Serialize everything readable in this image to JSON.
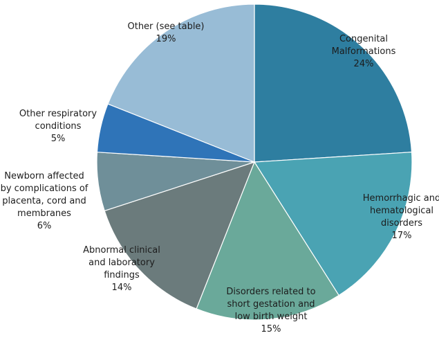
{
  "chart_data": {
    "type": "pie",
    "title": "",
    "slices": [
      {
        "label": "Congenital Malformations",
        "label_lines": [
          "Congenital",
          "Malformations"
        ],
        "value": 24,
        "value_label": "24%",
        "color": "#2e7ea0"
      },
      {
        "label": "Hemorrhagic and hematological disorders",
        "label_lines": [
          "Hemorrhagic and",
          "hematological",
          "disorders"
        ],
        "value": 17,
        "value_label": "17%",
        "color": "#4aa3b3"
      },
      {
        "label": "Disorders related to short gestation and low birth weight",
        "label_lines": [
          "Disorders related to",
          "short gestation and",
          "low birth weight"
        ],
        "value": 15,
        "value_label": "15%",
        "color": "#6aa99a"
      },
      {
        "label": "Abnormal clinical and laboratory findings",
        "label_lines": [
          "Abnormal clinical",
          "and laboratory",
          "findings"
        ],
        "value": 14,
        "value_label": "14%",
        "color": "#6b7b7c"
      },
      {
        "label": "Newborn affected by complications of placenta, cord and membranes",
        "label_lines": [
          "Newborn affected",
          "by complications of",
          "placenta, cord and",
          "membranes"
        ],
        "value": 6,
        "value_label": "6%",
        "color": "#6f8f99"
      },
      {
        "label": "Other respiratory conditions",
        "label_lines": [
          "Other respiratory",
          "conditions"
        ],
        "value": 5,
        "value_label": "5%",
        "color": "#2f74b8"
      },
      {
        "label": "Other (see table)",
        "label_lines": [
          "Other (see table)"
        ],
        "value": 19,
        "value_label": "19%",
        "color": "#98bcd6"
      }
    ]
  }
}
